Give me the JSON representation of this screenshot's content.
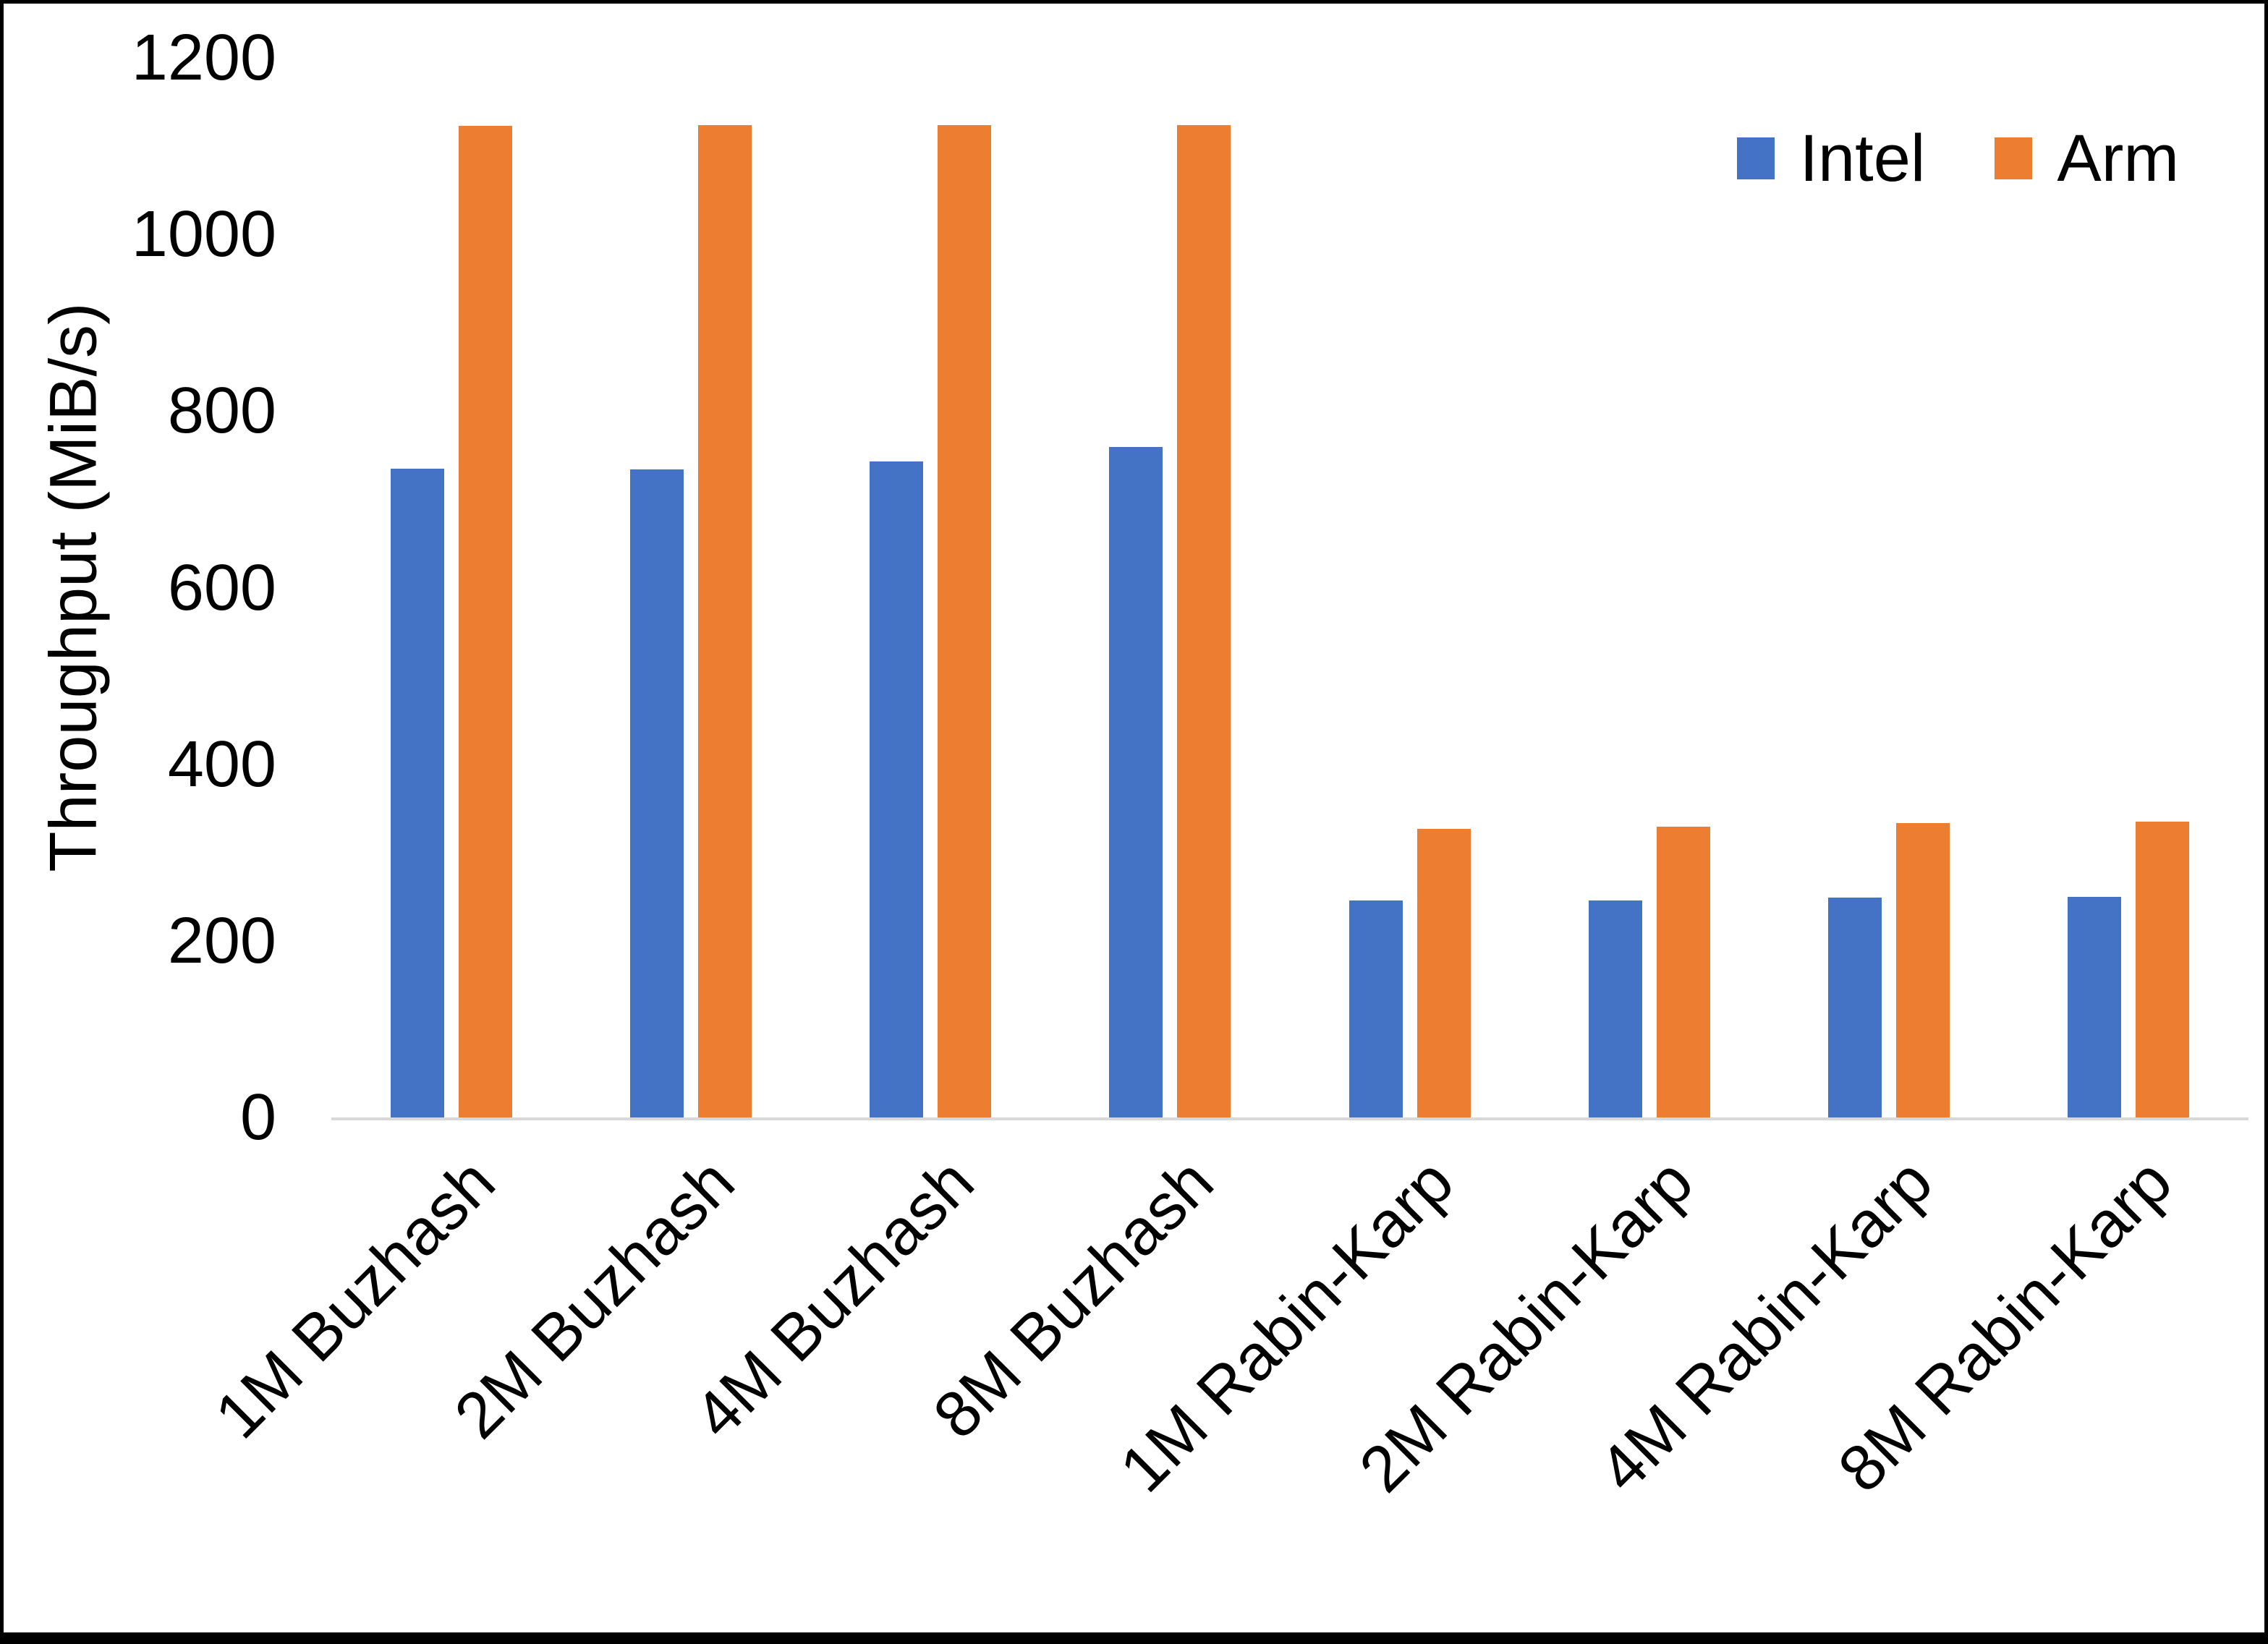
{
  "chart_data": {
    "type": "bar",
    "title": "",
    "xlabel": "",
    "ylabel": "Throughput (MiB/s)",
    "ylim": [
      0,
      1200
    ],
    "yticks": [
      0,
      200,
      400,
      600,
      800,
      1000,
      1200
    ],
    "grid": false,
    "legend_position": "top-right",
    "categories": [
      "1M Buzhash",
      "2M Buzhash",
      "4M Buzhash",
      "8M Buzhash",
      "1M Rabin-Karp",
      "2M Rabin-Karp",
      "4M Rabin-Karp",
      "8M Rabin-Karp"
    ],
    "series": [
      {
        "name": "Intel",
        "color": "#4472C4",
        "values": [
          735,
          734,
          743,
          759,
          246,
          246,
          249,
          250
        ]
      },
      {
        "name": "Arm",
        "color": "#ED7D31",
        "values": [
          1123,
          1124,
          1124,
          1124,
          327,
          329,
          333,
          335
        ]
      }
    ]
  },
  "colors": {
    "background": "#FFFFFF",
    "axis_line": "#D9D9D9",
    "text": "#000000",
    "page_edge": "#000000"
  }
}
